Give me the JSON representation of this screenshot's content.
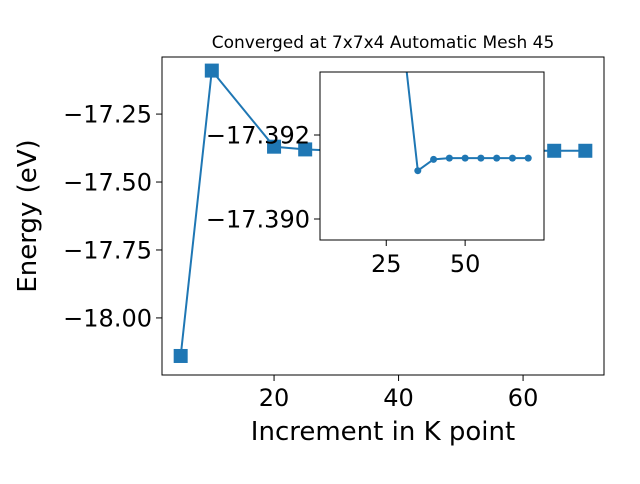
{
  "chart_data": [
    {
      "type": "line",
      "title": "Converged at 7x7x4 Automatic Mesh 45",
      "xlabel": "Increment in K point",
      "ylabel": "Energy (eV)",
      "xlim": [
        2,
        73
      ],
      "ylim": [
        -18.21,
        -17.04
      ],
      "xticks": [
        20,
        40,
        60
      ],
      "yticks": [
        -17.25,
        -17.5,
        -17.75,
        -18.0
      ],
      "ytick_labels": [
        "−17.25",
        "−17.50",
        "−17.75",
        "−18.00"
      ],
      "marker": "square",
      "color": "#1f77b4",
      "series": [
        {
          "x": [
            5,
            10,
            20,
            25,
            30,
            35,
            40,
            45,
            50,
            55,
            60,
            65,
            70
          ],
          "y": [
            -18.14,
            -17.09,
            -17.37,
            -17.38,
            -17.385,
            -17.385,
            -17.385,
            -17.385,
            -17.385,
            -17.385,
            -17.385,
            -17.385,
            -17.385
          ]
        }
      ]
    },
    {
      "type": "line",
      "role": "inset",
      "xlim": [
        4,
        75
      ],
      "ylim": [
        -17.3895,
        -17.3935
      ],
      "xticks": [
        25,
        50
      ],
      "yticks": [
        -17.392,
        -17.39
      ],
      "ytick_labels": [
        "−17.392",
        "−17.390"
      ],
      "marker": "circle",
      "color": "#1f77b4",
      "series": [
        {
          "x": [
            30,
            35,
            40,
            45,
            50,
            55,
            60,
            65,
            70
          ],
          "y": [
            -17.3945,
            -17.39115,
            -17.39142,
            -17.39145,
            -17.39145,
            -17.39145,
            -17.39145,
            -17.39145,
            -17.39145
          ]
        }
      ]
    }
  ]
}
